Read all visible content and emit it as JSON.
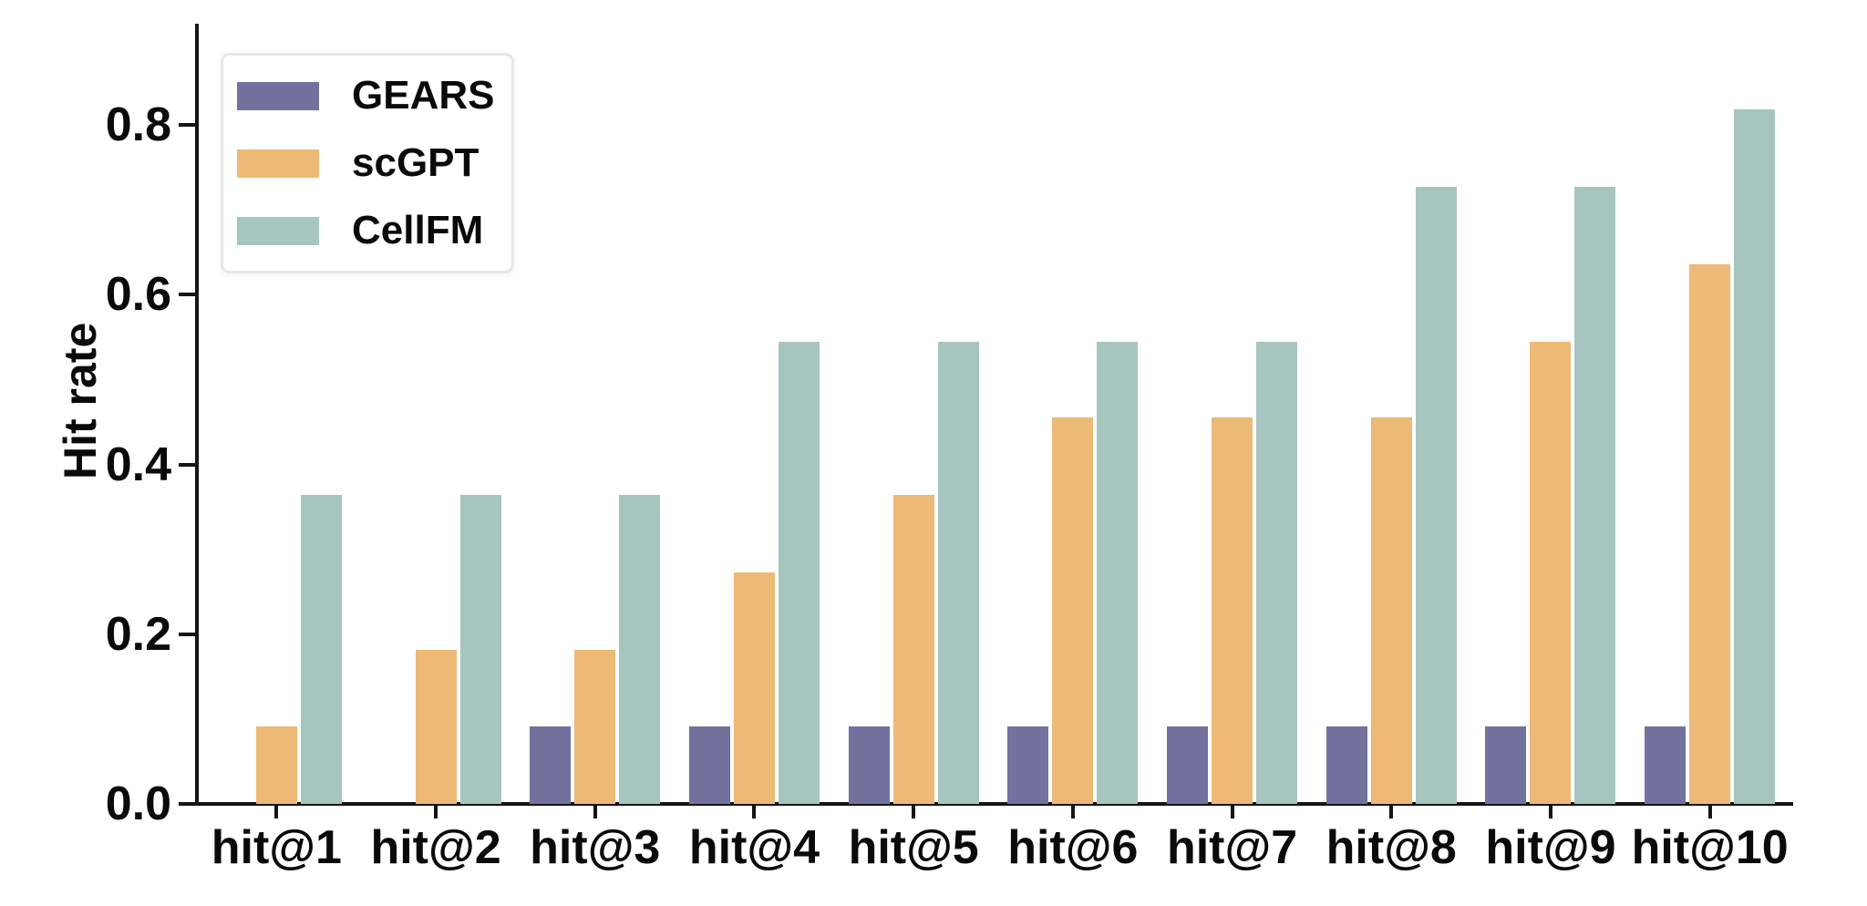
{
  "chart_data": {
    "type": "bar",
    "title": "",
    "xlabel": "",
    "ylabel": "Hit rate",
    "categories": [
      "hit@1",
      "hit@2",
      "hit@3",
      "hit@4",
      "hit@5",
      "hit@6",
      "hit@7",
      "hit@8",
      "hit@9",
      "hit@10"
    ],
    "series": [
      {
        "name": "GEARS",
        "color": "#73719E",
        "values": [
          0,
          0,
          0.091,
          0.091,
          0.091,
          0.091,
          0.091,
          0.091,
          0.091,
          0.091
        ]
      },
      {
        "name": "scGPT",
        "color": "#EDB976",
        "values": [
          0.091,
          0.182,
          0.182,
          0.273,
          0.364,
          0.455,
          0.455,
          0.455,
          0.545,
          0.636
        ]
      },
      {
        "name": "CellFM",
        "color": "#A6C5BF",
        "values": [
          0.364,
          0.364,
          0.364,
          0.545,
          0.545,
          0.545,
          0.545,
          0.727,
          0.727,
          0.818
        ]
      }
    ],
    "yticks": [
      0.0,
      0.2,
      0.4,
      0.6,
      0.8
    ],
    "ylim": [
      0,
      0.915
    ],
    "grid": false,
    "legend_position": "upper-left",
    "axis_color": "#151515"
  }
}
